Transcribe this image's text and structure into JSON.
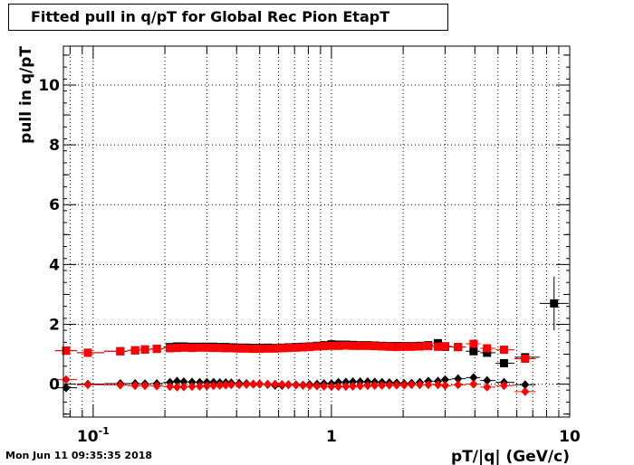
{
  "chart_data": {
    "type": "scatter",
    "title": "Fitted pull in q/pT for Global Rec Pion EtapT",
    "xlabel": "pT/|q| (GeV/c)",
    "ylabel": "pull in q/pT",
    "x_scale": "log",
    "xlim": [
      0.075,
      10
    ],
    "ylim": [
      -1.1,
      11.3
    ],
    "grid": true,
    "x_tick_labels": [
      {
        "value": 0.1,
        "base": "10",
        "exp": "-1"
      },
      {
        "value": 1,
        "base": "1",
        "exp": ""
      },
      {
        "value": 10,
        "base": "10",
        "exp": ""
      }
    ],
    "y_ticks": [
      0,
      2,
      4,
      6,
      8,
      10
    ],
    "series": [
      {
        "marker": "square",
        "color": "#000000",
        "points": [
          [
            0.077,
            1.12
          ],
          [
            0.095,
            1.05
          ],
          [
            0.13,
            1.1
          ],
          [
            0.15,
            1.13
          ],
          [
            0.165,
            1.16
          ],
          [
            0.185,
            1.18
          ],
          [
            0.21,
            1.24
          ],
          [
            0.225,
            1.26
          ],
          [
            0.24,
            1.26
          ],
          [
            0.26,
            1.25
          ],
          [
            0.28,
            1.25
          ],
          [
            0.3,
            1.25
          ],
          [
            0.32,
            1.25
          ],
          [
            0.34,
            1.24
          ],
          [
            0.36,
            1.24
          ],
          [
            0.38,
            1.23
          ],
          [
            0.41,
            1.22
          ],
          [
            0.44,
            1.22
          ],
          [
            0.47,
            1.21
          ],
          [
            0.5,
            1.21
          ],
          [
            0.54,
            1.22
          ],
          [
            0.58,
            1.21
          ],
          [
            0.62,
            1.22
          ],
          [
            0.66,
            1.23
          ],
          [
            0.71,
            1.24
          ],
          [
            0.76,
            1.25
          ],
          [
            0.81,
            1.26
          ],
          [
            0.87,
            1.28
          ],
          [
            0.93,
            1.3
          ],
          [
            1.0,
            1.33
          ],
          [
            1.07,
            1.32
          ],
          [
            1.15,
            1.32
          ],
          [
            1.23,
            1.31
          ],
          [
            1.32,
            1.3
          ],
          [
            1.42,
            1.3
          ],
          [
            1.52,
            1.29
          ],
          [
            1.63,
            1.28
          ],
          [
            1.75,
            1.27
          ],
          [
            1.88,
            1.27
          ],
          [
            2.02,
            1.27
          ],
          [
            2.17,
            1.27
          ],
          [
            2.35,
            1.28
          ],
          [
            2.55,
            1.3
          ],
          [
            2.8,
            1.37
          ],
          [
            3.0,
            1.25
          ],
          [
            3.4,
            1.24
          ],
          [
            3.95,
            1.1
          ],
          [
            4.5,
            1.05
          ],
          [
            5.3,
            0.7
          ],
          [
            6.5,
            0.9
          ],
          [
            8.6,
            2.7
          ]
        ],
        "y_errors": [
          0,
          0,
          0,
          0,
          0,
          0,
          0,
          0,
          0,
          0,
          0,
          0,
          0,
          0,
          0,
          0,
          0,
          0,
          0,
          0,
          0,
          0,
          0,
          0,
          0,
          0,
          0,
          0,
          0,
          0,
          0,
          0,
          0,
          0,
          0,
          0,
          0,
          0,
          0,
          0,
          0,
          0,
          0,
          0,
          0,
          0,
          0,
          0,
          0,
          0,
          0.9
        ]
      },
      {
        "marker": "diamond",
        "color": "#000000",
        "points": [
          [
            0.077,
            -0.12
          ],
          [
            0.095,
            0.0
          ],
          [
            0.13,
            0.02
          ],
          [
            0.15,
            0.02
          ],
          [
            0.165,
            0.01
          ],
          [
            0.185,
            0.02
          ],
          [
            0.21,
            0.06
          ],
          [
            0.225,
            0.1
          ],
          [
            0.24,
            0.08
          ],
          [
            0.26,
            0.07
          ],
          [
            0.28,
            0.06
          ],
          [
            0.3,
            0.06
          ],
          [
            0.32,
            0.06
          ],
          [
            0.34,
            0.05
          ],
          [
            0.36,
            0.05
          ],
          [
            0.38,
            0.04
          ],
          [
            0.41,
            0.03
          ],
          [
            0.44,
            0.02
          ],
          [
            0.47,
            0.0
          ],
          [
            0.5,
            0.0
          ],
          [
            0.54,
            -0.01
          ],
          [
            0.58,
            -0.04
          ],
          [
            0.62,
            -0.04
          ],
          [
            0.66,
            -0.02
          ],
          [
            0.71,
            -0.02
          ],
          [
            0.76,
            -0.03
          ],
          [
            0.81,
            -0.01
          ],
          [
            0.87,
            0.0
          ],
          [
            0.93,
            0.02
          ],
          [
            1.0,
            0.02
          ],
          [
            1.07,
            0.06
          ],
          [
            1.15,
            0.07
          ],
          [
            1.23,
            0.08
          ],
          [
            1.32,
            0.08
          ],
          [
            1.42,
            0.08
          ],
          [
            1.52,
            0.07
          ],
          [
            1.63,
            0.06
          ],
          [
            1.75,
            0.05
          ],
          [
            1.88,
            0.04
          ],
          [
            2.02,
            0.02
          ],
          [
            2.17,
            0.03
          ],
          [
            2.35,
            0.06
          ],
          [
            2.55,
            0.1
          ],
          [
            2.8,
            0.1
          ],
          [
            3.0,
            0.15
          ],
          [
            3.4,
            0.18
          ],
          [
            3.95,
            0.22
          ],
          [
            4.5,
            0.12
          ],
          [
            5.3,
            0.06
          ],
          [
            6.5,
            -0.02
          ]
        ]
      },
      {
        "marker": "square",
        "color": "#ff0000",
        "points": [
          [
            0.077,
            1.12
          ],
          [
            0.095,
            1.05
          ],
          [
            0.13,
            1.1
          ],
          [
            0.15,
            1.13
          ],
          [
            0.165,
            1.16
          ],
          [
            0.185,
            1.18
          ],
          [
            0.21,
            1.2
          ],
          [
            0.225,
            1.21
          ],
          [
            0.24,
            1.22
          ],
          [
            0.26,
            1.21
          ],
          [
            0.28,
            1.22
          ],
          [
            0.3,
            1.22
          ],
          [
            0.32,
            1.21
          ],
          [
            0.34,
            1.21
          ],
          [
            0.36,
            1.2
          ],
          [
            0.38,
            1.2
          ],
          [
            0.41,
            1.19
          ],
          [
            0.44,
            1.19
          ],
          [
            0.47,
            1.18
          ],
          [
            0.5,
            1.18
          ],
          [
            0.54,
            1.19
          ],
          [
            0.58,
            1.19
          ],
          [
            0.62,
            1.2
          ],
          [
            0.66,
            1.21
          ],
          [
            0.71,
            1.22
          ],
          [
            0.76,
            1.23
          ],
          [
            0.81,
            1.24
          ],
          [
            0.87,
            1.26
          ],
          [
            0.93,
            1.27
          ],
          [
            1.0,
            1.28
          ],
          [
            1.07,
            1.28
          ],
          [
            1.15,
            1.29
          ],
          [
            1.23,
            1.28
          ],
          [
            1.32,
            1.28
          ],
          [
            1.42,
            1.28
          ],
          [
            1.52,
            1.27
          ],
          [
            1.63,
            1.26
          ],
          [
            1.75,
            1.25
          ],
          [
            1.88,
            1.24
          ],
          [
            2.02,
            1.25
          ],
          [
            2.17,
            1.25
          ],
          [
            2.35,
            1.26
          ],
          [
            2.55,
            1.27
          ],
          [
            2.8,
            1.25
          ],
          [
            3.0,
            1.27
          ],
          [
            3.4,
            1.24
          ],
          [
            3.95,
            1.35
          ],
          [
            4.5,
            1.2
          ],
          [
            5.3,
            1.15
          ],
          [
            6.5,
            0.85
          ]
        ]
      },
      {
        "marker": "diamond",
        "color": "#ff0000",
        "points": [
          [
            0.077,
            0.15
          ],
          [
            0.095,
            -0.02
          ],
          [
            0.13,
            -0.03
          ],
          [
            0.15,
            -0.05
          ],
          [
            0.165,
            -0.05
          ],
          [
            0.185,
            -0.06
          ],
          [
            0.21,
            -0.08
          ],
          [
            0.225,
            -0.1
          ],
          [
            0.24,
            -0.09
          ],
          [
            0.26,
            -0.08
          ],
          [
            0.28,
            -0.07
          ],
          [
            0.3,
            -0.06
          ],
          [
            0.32,
            -0.05
          ],
          [
            0.34,
            -0.04
          ],
          [
            0.36,
            -0.03
          ],
          [
            0.38,
            -0.02
          ],
          [
            0.41,
            -0.02
          ],
          [
            0.44,
            -0.01
          ],
          [
            0.47,
            0.0
          ],
          [
            0.5,
            0.01
          ],
          [
            0.54,
            0.0
          ],
          [
            0.58,
            0.0
          ],
          [
            0.62,
            -0.01
          ],
          [
            0.66,
            -0.02
          ],
          [
            0.71,
            -0.03
          ],
          [
            0.76,
            -0.04
          ],
          [
            0.81,
            -0.05
          ],
          [
            0.87,
            -0.06
          ],
          [
            0.93,
            -0.07
          ],
          [
            1.0,
            -0.08
          ],
          [
            1.07,
            -0.08
          ],
          [
            1.15,
            -0.08
          ],
          [
            1.23,
            -0.07
          ],
          [
            1.32,
            -0.06
          ],
          [
            1.42,
            -0.05
          ],
          [
            1.52,
            -0.04
          ],
          [
            1.63,
            -0.04
          ],
          [
            1.75,
            -0.03
          ],
          [
            1.88,
            -0.03
          ],
          [
            2.02,
            -0.03
          ],
          [
            2.17,
            -0.02
          ],
          [
            2.35,
            -0.02
          ],
          [
            2.55,
            -0.02
          ],
          [
            2.8,
            -0.02
          ],
          [
            3.0,
            -0.05
          ],
          [
            3.4,
            -0.02
          ],
          [
            3.95,
            0.0
          ],
          [
            4.5,
            -0.1
          ],
          [
            5.3,
            -0.05
          ],
          [
            6.5,
            -0.25
          ]
        ]
      }
    ]
  },
  "footer": {
    "date": "Mon Jun 11 09:35:35 2018"
  }
}
